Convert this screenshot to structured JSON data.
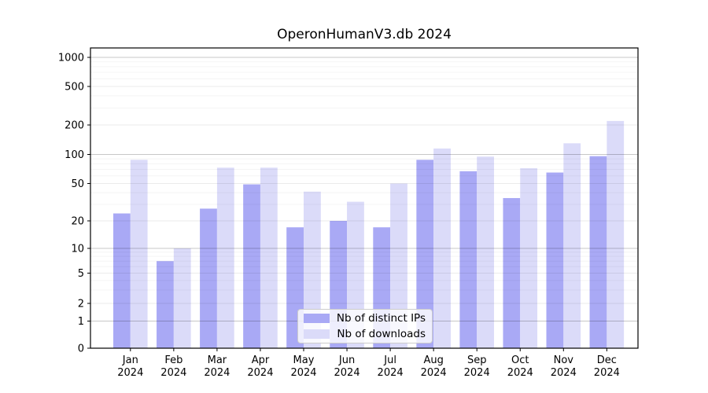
{
  "chart_data": {
    "type": "bar",
    "title": "OperonHumanV3.db 2024",
    "categories": [
      "Jan",
      "Feb",
      "Mar",
      "Apr",
      "May",
      "Jun",
      "Jul",
      "Aug",
      "Sep",
      "Oct",
      "Nov",
      "Dec"
    ],
    "year_label": "2024",
    "series": [
      {
        "name": "Nb of distinct IPs",
        "color": "#a9a9f5",
        "values": [
          24,
          7,
          27,
          49,
          17,
          20,
          17,
          88,
          67,
          35,
          65,
          96
        ]
      },
      {
        "name": "Nb of downloads",
        "color": "#dbdbf9",
        "values": [
          88,
          10,
          73,
          73,
          41,
          32,
          50,
          115,
          95,
          72,
          130,
          220
        ]
      }
    ],
    "yscale": "symlog",
    "yticks": [
      0,
      1,
      2,
      5,
      10,
      20,
      50,
      100,
      200,
      500,
      1000
    ],
    "ylim": [
      0,
      1000
    ],
    "xlabel": "",
    "ylabel": "",
    "grid": true,
    "legend_position": "bottom-center"
  }
}
